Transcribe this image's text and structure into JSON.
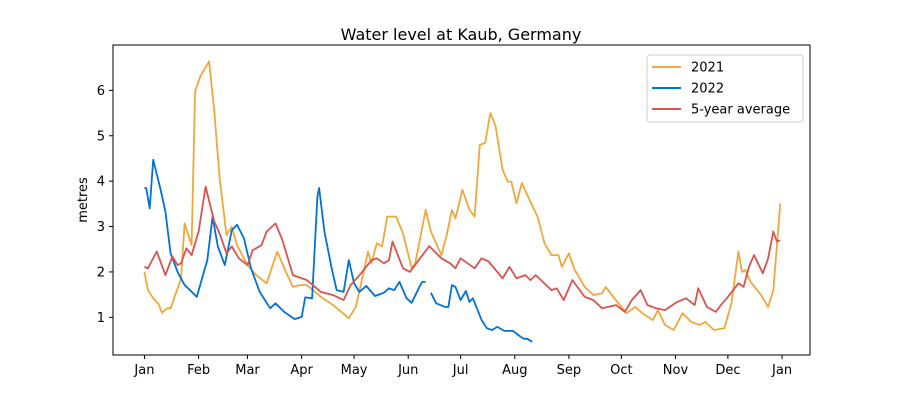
{
  "chart_data": {
    "type": "line",
    "title": "Water level at Kaub, Germany",
    "xlabel": "",
    "ylabel": "metres",
    "xlim": [
      "2020-12-14",
      "2022-01-17"
    ],
    "ylim": [
      0.17,
      7.0
    ],
    "grid": false,
    "legend_position": "top-right",
    "x_ticks": [
      {
        "label": "Jan",
        "date": "01-01"
      },
      {
        "label": "Feb",
        "date": "02-01"
      },
      {
        "label": "Mar",
        "date": "03-01"
      },
      {
        "label": "Apr",
        "date": "04-01"
      },
      {
        "label": "May",
        "date": "05-01"
      },
      {
        "label": "Jun",
        "date": "06-01"
      },
      {
        "label": "Jul",
        "date": "07-01"
      },
      {
        "label": "Aug",
        "date": "08-01"
      },
      {
        "label": "Sep",
        "date": "09-01"
      },
      {
        "label": "Oct",
        "date": "10-01"
      },
      {
        "label": "Nov",
        "date": "11-01"
      },
      {
        "label": "Dec",
        "date": "12-01"
      },
      {
        "label": "Jan",
        "date": "next-01-01"
      }
    ],
    "y_ticks": [
      1,
      2,
      3,
      4,
      5,
      6
    ],
    "series": [
      {
        "name": "2021",
        "color": "#f0a83c",
        "points": [
          [
            "01-01",
            2.0
          ],
          [
            "01-03",
            1.6
          ],
          [
            "01-06",
            1.42
          ],
          [
            "01-09",
            1.3
          ],
          [
            "01-11",
            1.1
          ],
          [
            "01-14",
            1.2
          ],
          [
            "01-16",
            1.2
          ],
          [
            "01-22",
            1.86
          ],
          [
            "01-24",
            3.07
          ],
          [
            "01-28",
            2.59
          ],
          [
            "01-30",
            5.98
          ],
          [
            "02-02",
            6.31
          ],
          [
            "02-07",
            6.64
          ],
          [
            "02-10",
            5.54
          ],
          [
            "02-13",
            4.07
          ],
          [
            "02-17",
            2.81
          ],
          [
            "02-20",
            3.0
          ],
          [
            "02-23",
            2.59
          ],
          [
            "03-01",
            2.15
          ],
          [
            "03-06",
            1.93
          ],
          [
            "03-12",
            1.75
          ],
          [
            "03-18",
            2.45
          ],
          [
            "03-23",
            2.0
          ],
          [
            "03-27",
            1.67
          ],
          [
            "03-31",
            1.71
          ],
          [
            "04-04",
            1.71
          ],
          [
            "04-12",
            1.45
          ],
          [
            "04-19",
            1.27
          ],
          [
            "04-28",
            0.98
          ],
          [
            "05-02",
            1.23
          ],
          [
            "05-05",
            1.75
          ],
          [
            "05-09",
            2.45
          ],
          [
            "05-11",
            2.19
          ],
          [
            "05-14",
            2.63
          ],
          [
            "05-17",
            2.56
          ],
          [
            "05-20",
            3.22
          ],
          [
            "05-25",
            3.22
          ],
          [
            "05-29",
            2.85
          ],
          [
            "06-03",
            2.08
          ],
          [
            "06-05",
            2.19
          ],
          [
            "06-11",
            3.37
          ],
          [
            "06-14",
            2.89
          ],
          [
            "06-20",
            2.37
          ],
          [
            "06-23",
            2.81
          ],
          [
            "06-26",
            3.37
          ],
          [
            "06-28",
            3.18
          ],
          [
            "07-02",
            3.81
          ],
          [
            "07-06",
            3.37
          ],
          [
            "07-09",
            3.22
          ],
          [
            "07-12",
            4.8
          ],
          [
            "07-15",
            4.84
          ],
          [
            "07-18",
            5.5
          ],
          [
            "07-21",
            5.21
          ],
          [
            "07-25",
            4.25
          ],
          [
            "07-28",
            3.99
          ],
          [
            "07-30",
            3.99
          ],
          [
            "08-02",
            3.51
          ],
          [
            "08-05",
            3.96
          ],
          [
            "08-09",
            3.62
          ],
          [
            "08-14",
            3.22
          ],
          [
            "08-18",
            2.63
          ],
          [
            "08-22",
            2.37
          ],
          [
            "08-26",
            2.37
          ],
          [
            "08-28",
            2.11
          ],
          [
            "09-01",
            2.41
          ],
          [
            "09-04",
            2.07
          ],
          [
            "09-10",
            1.67
          ],
          [
            "09-15",
            1.49
          ],
          [
            "09-20",
            1.53
          ],
          [
            "09-22",
            1.67
          ],
          [
            "09-27",
            1.42
          ],
          [
            "10-04",
            1.09
          ],
          [
            "10-09",
            1.23
          ],
          [
            "10-13",
            1.09
          ],
          [
            "10-19",
            0.94
          ],
          [
            "10-22",
            1.16
          ],
          [
            "10-26",
            0.83
          ],
          [
            "10-31",
            0.72
          ],
          [
            "11-05",
            1.09
          ],
          [
            "11-10",
            0.9
          ],
          [
            "11-15",
            0.83
          ],
          [
            "11-18",
            0.9
          ],
          [
            "11-23",
            0.72
          ],
          [
            "11-29",
            0.76
          ],
          [
            "12-03",
            1.31
          ],
          [
            "12-07",
            2.45
          ],
          [
            "12-09",
            2.0
          ],
          [
            "12-11",
            2.04
          ],
          [
            "12-14",
            1.78
          ],
          [
            "12-20",
            1.49
          ],
          [
            "12-24",
            1.23
          ],
          [
            "12-27",
            1.6
          ],
          [
            "12-31",
            3.51
          ]
        ]
      },
      {
        "name": "2022",
        "color": "#0072d4",
        "points": [
          [
            "01-01",
            3.85
          ],
          [
            "01-02",
            3.85
          ],
          [
            "01-04",
            3.4
          ],
          [
            "01-06",
            4.47
          ],
          [
            "01-10",
            3.85
          ],
          [
            "01-13",
            3.33
          ],
          [
            "01-16",
            2.41
          ],
          [
            "01-20",
            2.0
          ],
          [
            "01-24",
            1.71
          ],
          [
            "01-26",
            1.64
          ],
          [
            "01-31",
            1.45
          ],
          [
            "02-03",
            1.86
          ],
          [
            "02-06",
            2.26
          ],
          [
            "02-09",
            3.22
          ],
          [
            "02-12",
            2.56
          ],
          [
            "02-16",
            2.15
          ],
          [
            "02-20",
            2.92
          ],
          [
            "02-23",
            3.04
          ],
          [
            "02-27",
            2.74
          ],
          [
            "03-03",
            2.08
          ],
          [
            "03-08",
            1.56
          ],
          [
            "03-14",
            1.2
          ],
          [
            "03-17",
            1.31
          ],
          [
            "03-22",
            1.12
          ],
          [
            "03-28",
            0.96
          ],
          [
            "04-01",
            1.01
          ],
          [
            "04-03",
            1.44
          ],
          [
            "04-07",
            1.42
          ],
          [
            "04-10",
            3.66
          ],
          [
            "04-11",
            3.85
          ],
          [
            "04-14",
            2.89
          ],
          [
            "04-18",
            2.11
          ],
          [
            "04-21",
            1.6
          ],
          [
            "04-25",
            1.56
          ],
          [
            "04-28",
            2.26
          ],
          [
            "05-01",
            1.75
          ],
          [
            "05-04",
            1.56
          ],
          [
            "05-08",
            1.69
          ],
          [
            "05-13",
            1.47
          ],
          [
            "05-18",
            1.54
          ],
          [
            "05-21",
            1.64
          ],
          [
            "05-24",
            1.6
          ],
          [
            "05-27",
            1.78
          ],
          [
            "05-31",
            1.42
          ],
          [
            "06-03",
            1.32
          ],
          [
            "06-07",
            1.64
          ],
          [
            "06-09",
            1.78
          ],
          [
            "06-11",
            1.78
          ],
          [
            "06-12",
            null
          ],
          [
            "06-14",
            1.54
          ],
          [
            "06-17",
            1.31
          ],
          [
            "06-22",
            1.23
          ],
          [
            "06-24",
            1.23
          ],
          [
            "06-26",
            1.71
          ],
          [
            "06-28",
            1.67
          ],
          [
            "07-01",
            1.38
          ],
          [
            "07-04",
            1.58
          ],
          [
            "07-06",
            1.34
          ],
          [
            "07-08",
            1.42
          ],
          [
            "07-13",
            0.94
          ],
          [
            "07-16",
            0.76
          ],
          [
            "07-19",
            0.72
          ],
          [
            "07-22",
            0.79
          ],
          [
            "07-26",
            0.7
          ],
          [
            "07-31",
            0.7
          ],
          [
            "08-03",
            0.61
          ],
          [
            "08-06",
            0.53
          ],
          [
            "08-08",
            0.53
          ],
          [
            "08-11",
            0.46
          ]
        ]
      },
      {
        "name": "5-year average",
        "color": "#d9534f",
        "points": [
          [
            "01-01",
            2.11
          ],
          [
            "01-03",
            2.08
          ],
          [
            "01-08",
            2.45
          ],
          [
            "01-13",
            1.93
          ],
          [
            "01-17",
            2.34
          ],
          [
            "01-20",
            2.15
          ],
          [
            "01-22",
            2.19
          ],
          [
            "01-25",
            2.52
          ],
          [
            "01-28",
            2.37
          ],
          [
            "02-01",
            2.89
          ],
          [
            "02-05",
            3.88
          ],
          [
            "02-10",
            3.11
          ],
          [
            "02-13",
            2.85
          ],
          [
            "02-17",
            2.41
          ],
          [
            "02-20",
            2.56
          ],
          [
            "02-24",
            2.3
          ],
          [
            "03-01",
            2.15
          ],
          [
            "03-04",
            2.48
          ],
          [
            "03-09",
            2.59
          ],
          [
            "03-12",
            2.89
          ],
          [
            "03-17",
            3.07
          ],
          [
            "03-21",
            2.7
          ],
          [
            "03-27",
            1.93
          ],
          [
            "04-04",
            1.82
          ],
          [
            "04-12",
            1.56
          ],
          [
            "04-19",
            1.49
          ],
          [
            "04-25",
            1.38
          ],
          [
            "04-29",
            1.71
          ],
          [
            "05-05",
            1.97
          ],
          [
            "05-11",
            2.26
          ],
          [
            "05-14",
            2.3
          ],
          [
            "05-18",
            2.19
          ],
          [
            "05-21",
            2.26
          ],
          [
            "05-23",
            2.67
          ],
          [
            "05-29",
            2.08
          ],
          [
            "06-02",
            2.0
          ],
          [
            "06-13",
            2.57
          ],
          [
            "06-20",
            2.3
          ],
          [
            "06-25",
            2.19
          ],
          [
            "06-28",
            2.08
          ],
          [
            "07-01",
            2.3
          ],
          [
            "07-09",
            2.08
          ],
          [
            "07-13",
            2.3
          ],
          [
            "07-17",
            2.23
          ],
          [
            "07-25",
            1.86
          ],
          [
            "07-29",
            2.11
          ],
          [
            "08-02",
            1.86
          ],
          [
            "08-07",
            1.93
          ],
          [
            "08-10",
            1.82
          ],
          [
            "08-13",
            1.93
          ],
          [
            "08-22",
            1.6
          ],
          [
            "08-25",
            1.64
          ],
          [
            "08-29",
            1.38
          ],
          [
            "09-03",
            1.82
          ],
          [
            "09-10",
            1.45
          ],
          [
            "09-15",
            1.38
          ],
          [
            "09-20",
            1.2
          ],
          [
            "09-28",
            1.27
          ],
          [
            "10-03",
            1.12
          ],
          [
            "10-07",
            1.38
          ],
          [
            "10-12",
            1.6
          ],
          [
            "10-16",
            1.27
          ],
          [
            "10-21",
            1.2
          ],
          [
            "10-26",
            1.16
          ],
          [
            "11-02",
            1.34
          ],
          [
            "11-07",
            1.42
          ],
          [
            "11-12",
            1.27
          ],
          [
            "11-14",
            1.64
          ],
          [
            "11-19",
            1.23
          ],
          [
            "11-24",
            1.12
          ],
          [
            "11-27",
            1.27
          ],
          [
            "12-01",
            1.45
          ],
          [
            "12-07",
            1.75
          ],
          [
            "12-10",
            1.67
          ],
          [
            "12-13",
            2.11
          ],
          [
            "12-16",
            2.37
          ],
          [
            "12-21",
            1.97
          ],
          [
            "12-24",
            2.3
          ],
          [
            "12-27",
            2.89
          ],
          [
            "12-29",
            2.67
          ],
          [
            "12-31",
            2.7
          ]
        ]
      }
    ]
  }
}
